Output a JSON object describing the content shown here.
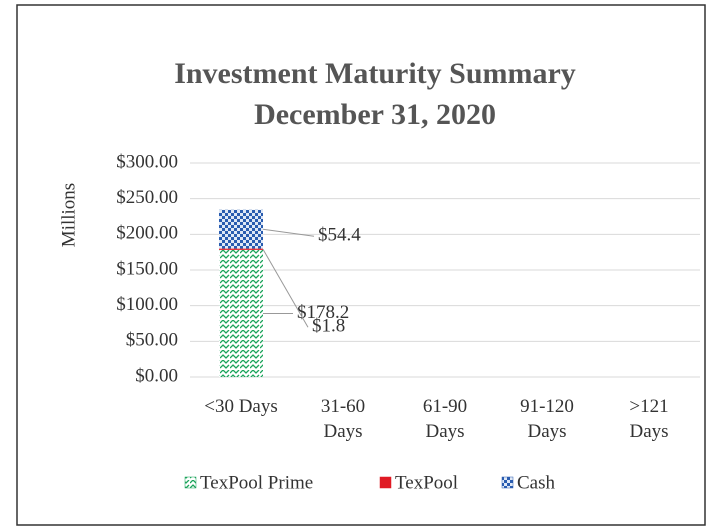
{
  "chart_data": {
    "type": "stacked_bar",
    "title": "Investment Maturity Summary",
    "subtitle": "December 31, 2020",
    "y_label": "Millions",
    "categories": [
      "<30 Days",
      "31-60\nDays",
      "61-90\nDays",
      "91-120\nDays",
      ">121\nDays"
    ],
    "series": [
      {
        "name": "TexPool Prime",
        "color": "#1aa35a",
        "values": [
          178.2,
          0,
          0,
          0,
          0
        ],
        "value_labels": [
          "$178.2",
          null,
          null,
          null,
          null
        ]
      },
      {
        "name": "TexPool",
        "color": "#e01b24",
        "values": [
          1.8,
          0,
          0,
          0,
          0
        ],
        "value_labels": [
          "$1.8",
          null,
          null,
          null,
          null
        ]
      },
      {
        "name": "Cash",
        "color": "#2a5db0",
        "values": [
          54.4,
          0,
          0,
          0,
          0
        ],
        "value_labels": [
          "$54.4",
          null,
          null,
          null,
          null
        ]
      }
    ],
    "ylim": [
      0,
      300
    ],
    "yticks": [
      {
        "value": 0,
        "label": "$0.00"
      },
      {
        "value": 50,
        "label": "$50.00"
      },
      {
        "value": 100,
        "label": "$100.00"
      },
      {
        "value": 150,
        "label": "$150.00"
      },
      {
        "value": 200,
        "label": "$200.00"
      },
      {
        "value": 250,
        "label": "$250.00"
      },
      {
        "value": 300,
        "label": "$300.00"
      }
    ],
    "grid": true,
    "legend": "bottom"
  }
}
